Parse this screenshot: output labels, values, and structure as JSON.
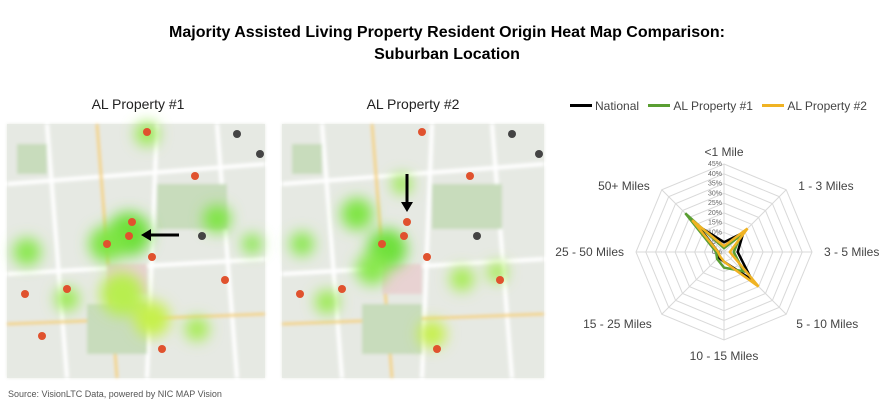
{
  "title_line1": "Majority Assisted Living Property Resident Origin Heat Map Comparison:",
  "title_line2": "Suburban Location",
  "maps": [
    {
      "title": "AL Property #1"
    },
    {
      "title": "AL Property #2"
    }
  ],
  "source": "Source: VisionLTC Data, powered by NIC MAP Vision",
  "chart_data": {
    "type": "radar",
    "categories": [
      "<1 Mile",
      "1 - 3 Miles",
      "3 - 5 Miles",
      "5 - 10 Miles",
      "10 - 15 Miles",
      "15 - 25 Miles",
      "25 - 50 Miles",
      "50+ Miles"
    ],
    "tick_labels": [
      "0%",
      "5%",
      "10%",
      "15%",
      "20%",
      "25%",
      "30%",
      "35%",
      "40%",
      "45%"
    ],
    "rmax": 45,
    "legend_position": "top",
    "series": [
      {
        "name": "National",
        "color": "#000000",
        "values": [
          5,
          14,
          7,
          20,
          5,
          4,
          3,
          19
        ]
      },
      {
        "name": "AL Property #1",
        "color": "#5a9e32",
        "values": [
          2,
          12,
          5,
          14,
          8,
          5,
          4,
          28
        ]
      },
      {
        "name": "AL Property #2",
        "color": "#f0b323",
        "values": [
          3,
          17,
          3,
          25,
          5,
          3,
          3,
          23
        ]
      }
    ]
  }
}
